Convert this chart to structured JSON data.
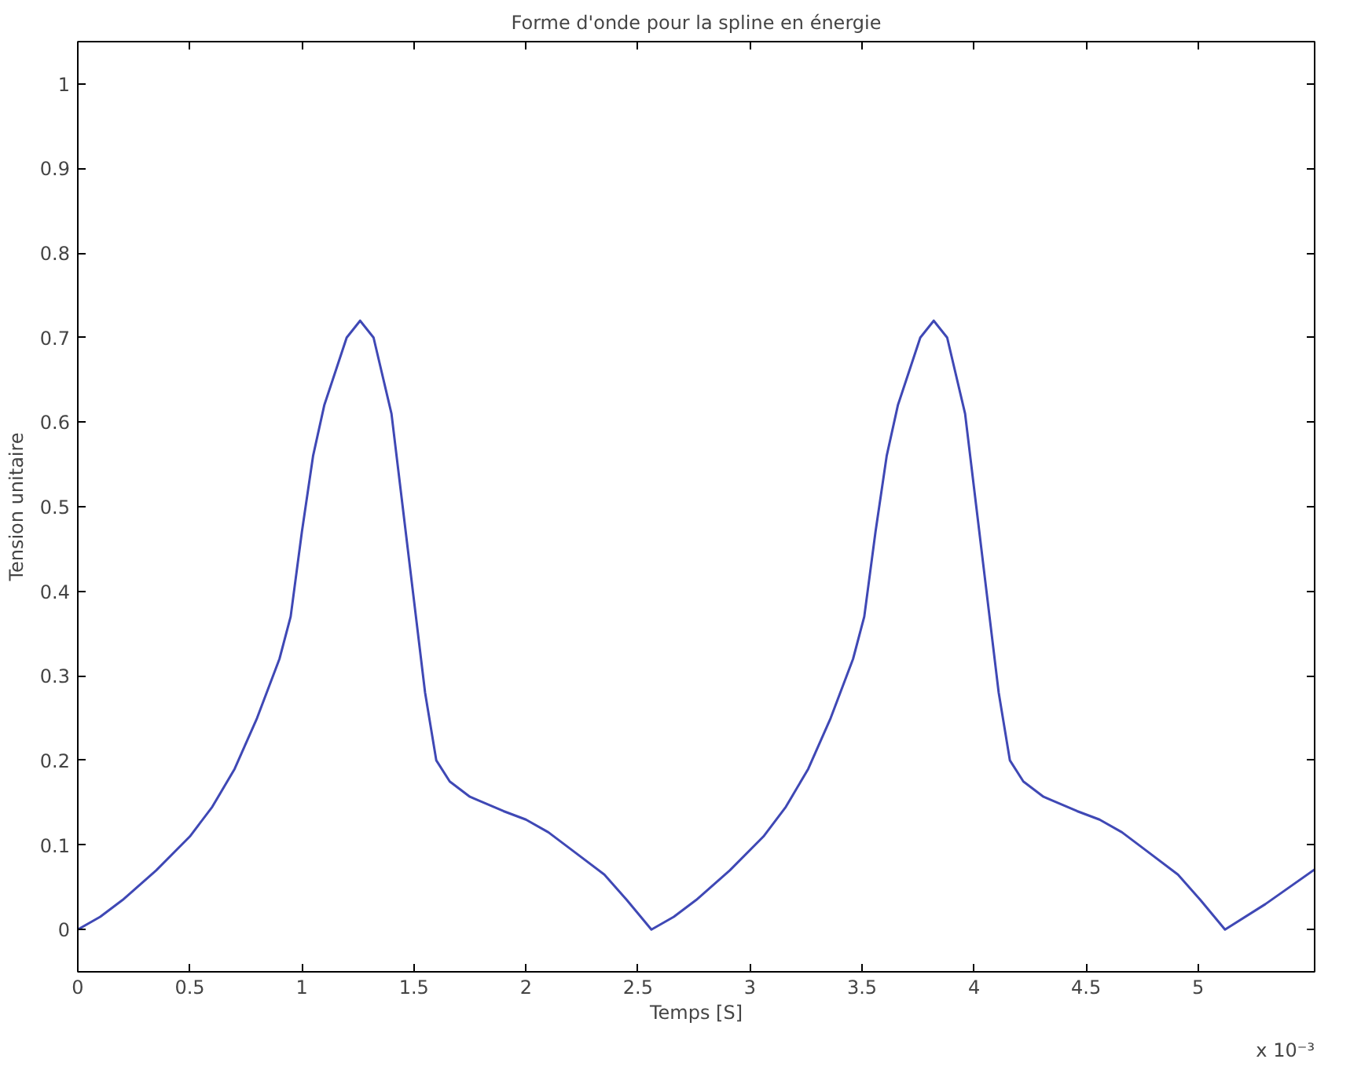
{
  "chart_data": {
    "type": "line",
    "title": "Forme d'onde pour la spline en énergie",
    "xlabel": "Temps [S]",
    "ylabel": "Tension unitaire",
    "annotations": [
      "x 10⁻³"
    ],
    "x": [
      0,
      0.1,
      0.2,
      0.35,
      0.5,
      0.6,
      0.7,
      0.8,
      0.9,
      0.95,
      1.0,
      1.05,
      1.1,
      1.2,
      1.26,
      1.32,
      1.4,
      1.45,
      1.5,
      1.55,
      1.6,
      1.66,
      1.75,
      1.9,
      2.0,
      2.1,
      2.2,
      2.35,
      2.45,
      2.56,
      2.66,
      2.76,
      2.91,
      3.06,
      3.16,
      3.26,
      3.36,
      3.46,
      3.51,
      3.56,
      3.61,
      3.66,
      3.76,
      3.82,
      3.88,
      3.96,
      4.01,
      4.06,
      4.11,
      4.16,
      4.22,
      4.31,
      4.46,
      4.56,
      4.66,
      4.76,
      4.91,
      5.01,
      5.12,
      5.3,
      5.52
    ],
    "series": [
      {
        "color": "#3f48b5",
        "values": [
          0,
          0.015,
          0.035,
          0.07,
          0.11,
          0.145,
          0.19,
          0.25,
          0.32,
          0.37,
          0.47,
          0.56,
          0.62,
          0.7,
          0.72,
          0.7,
          0.61,
          0.5,
          0.39,
          0.28,
          0.2,
          0.175,
          0.157,
          0.14,
          0.13,
          0.115,
          0.095,
          0.065,
          0.035,
          0,
          0.015,
          0.035,
          0.07,
          0.11,
          0.145,
          0.19,
          0.25,
          0.32,
          0.37,
          0.47,
          0.56,
          0.62,
          0.7,
          0.72,
          0.7,
          0.61,
          0.5,
          0.39,
          0.28,
          0.2,
          0.175,
          0.157,
          0.14,
          0.13,
          0.115,
          0.095,
          0.065,
          0.035,
          0,
          0.03,
          0.071
        ]
      }
    ],
    "xlim": [
      0,
      5.52
    ],
    "ylim": [
      -0.05,
      1.05
    ],
    "xticks": [
      0,
      0.5,
      1,
      1.5,
      2,
      2.5,
      3,
      3.5,
      4,
      4.5,
      5
    ],
    "yticks": [
      0,
      0.1,
      0.2,
      0.3,
      0.4,
      0.5,
      0.6,
      0.7,
      0.8,
      0.9,
      1
    ],
    "grid": false,
    "marker": "none",
    "line_style": "solid"
  }
}
